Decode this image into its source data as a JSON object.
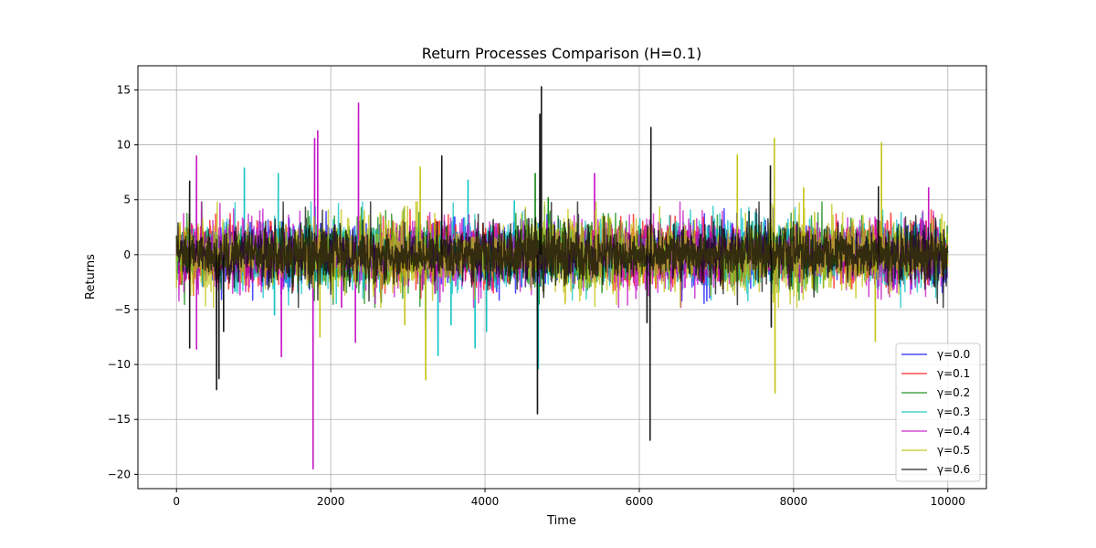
{
  "chart_data": {
    "type": "line",
    "title": "Return Processes Comparison (H=0.1)",
    "xlabel": "Time",
    "ylabel": "Returns",
    "xlim": [
      -500,
      10500
    ],
    "ylim": [
      -21.3,
      17.2
    ],
    "x_ticks": [
      0,
      2000,
      4000,
      6000,
      8000,
      10000
    ],
    "x_tick_labels": [
      "0",
      "2000",
      "4000",
      "6000",
      "8000",
      "10000"
    ],
    "y_ticks": [
      15,
      10,
      5,
      0,
      -5,
      -10,
      -15,
      -20
    ],
    "y_tick_labels": [
      "15",
      "10",
      "5",
      "0",
      "−5",
      "−10",
      "−15",
      "−20"
    ],
    "grid": true,
    "legend_position": "lower-right",
    "n_points": 10000,
    "series": [
      {
        "name": "γ=0.0",
        "color": "#0000ff",
        "base_amplitude": 1.1,
        "spikes": []
      },
      {
        "name": "γ=0.1",
        "color": "#ff0000",
        "base_amplitude": 1.1,
        "spikes": []
      },
      {
        "name": "γ=0.2",
        "color": "#008000",
        "base_amplitude": 1.2,
        "spikes": [
          {
            "x": 4650,
            "y": 7.4
          },
          {
            "x": 4820,
            "y": 5.2
          },
          {
            "x": 4700,
            "y": -4.5
          }
        ]
      },
      {
        "name": "γ=0.3",
        "color": "#00bfbf",
        "base_amplitude": 1.3,
        "spikes": [
          {
            "x": 880,
            "y": 7.9
          },
          {
            "x": 1320,
            "y": 7.4
          },
          {
            "x": 1270,
            "y": -5.5
          },
          {
            "x": 3230,
            "y": -6.0
          },
          {
            "x": 3390,
            "y": -9.2
          },
          {
            "x": 3560,
            "y": -6.4
          },
          {
            "x": 3780,
            "y": 6.8
          },
          {
            "x": 3870,
            "y": -8.5
          },
          {
            "x": 4020,
            "y": -7.0
          },
          {
            "x": 4690,
            "y": -10.4
          },
          {
            "x": 4380,
            "y": 4.9
          }
        ]
      },
      {
        "name": "γ=0.4",
        "color": "#bf00bf",
        "base_amplitude": 1.3,
        "spikes": [
          {
            "x": 260,
            "y": 9.0
          },
          {
            "x": 260,
            "y": -8.6
          },
          {
            "x": 1360,
            "y": -9.3
          },
          {
            "x": 1770,
            "y": -19.5
          },
          {
            "x": 1790,
            "y": 10.6
          },
          {
            "x": 1830,
            "y": 11.3
          },
          {
            "x": 2360,
            "y": 13.8
          },
          {
            "x": 2320,
            "y": -8.0
          },
          {
            "x": 2140,
            "y": -4.8
          },
          {
            "x": 5420,
            "y": 7.4
          },
          {
            "x": 9750,
            "y": 6.1
          }
        ]
      },
      {
        "name": "γ=0.5",
        "color": "#bfbf00",
        "base_amplitude": 1.4,
        "spikes": [
          {
            "x": 3160,
            "y": 8.0
          },
          {
            "x": 3230,
            "y": -11.4
          },
          {
            "x": 2960,
            "y": -6.4
          },
          {
            "x": 1860,
            "y": -7.5
          },
          {
            "x": 7270,
            "y": 9.1
          },
          {
            "x": 7750,
            "y": 10.6
          },
          {
            "x": 7760,
            "y": -12.6
          },
          {
            "x": 8130,
            "y": 6.1
          },
          {
            "x": 9140,
            "y": 10.2
          },
          {
            "x": 9060,
            "y": -7.9
          }
        ]
      },
      {
        "name": "γ=0.6",
        "color": "#000000",
        "base_amplitude": 1.2,
        "spikes": [
          {
            "x": 170,
            "y": 6.7
          },
          {
            "x": 170,
            "y": -8.5
          },
          {
            "x": 520,
            "y": -12.3
          },
          {
            "x": 550,
            "y": -11.3
          },
          {
            "x": 610,
            "y": -7.0
          },
          {
            "x": 3440,
            "y": 9.0
          },
          {
            "x": 4680,
            "y": -14.5
          },
          {
            "x": 4710,
            "y": 12.8
          },
          {
            "x": 4730,
            "y": 15.3
          },
          {
            "x": 6140,
            "y": -16.9
          },
          {
            "x": 6150,
            "y": 11.6
          },
          {
            "x": 6100,
            "y": -6.2
          },
          {
            "x": 7700,
            "y": 8.1
          },
          {
            "x": 7710,
            "y": -6.6
          },
          {
            "x": 9100,
            "y": 6.2
          }
        ]
      }
    ]
  }
}
